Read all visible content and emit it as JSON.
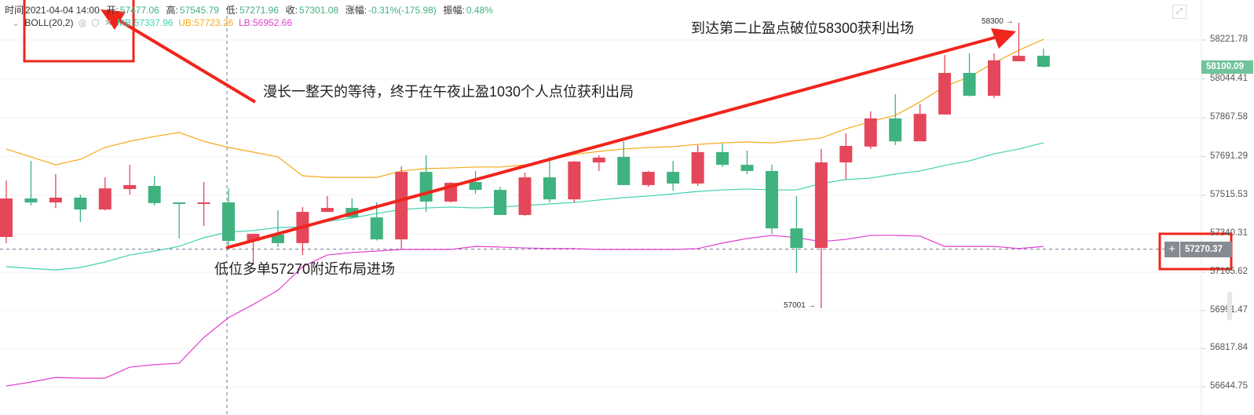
{
  "header": {
    "time_label": "时间",
    "time": "2021-04-04 14:00",
    "open_label": "开:",
    "open": "57477.06",
    "high_label": "高:",
    "high": "57545.79",
    "low_label": "低:",
    "low": "57271.96",
    "close_label": "收:",
    "close": "57301.08",
    "change_label": "涨幅:",
    "change": "-0.31%(-175.98)",
    "amp_label": "振幅:",
    "amp": "0.48%"
  },
  "indicator": {
    "name": "BOLL(20,2)",
    "mb": "MB:57337.96",
    "ub": "UB:57723.26",
    "lb": "LB:56952.66",
    "icons": [
      "chevron-down-icon",
      "eye-icon",
      "settings-icon",
      "close-icon"
    ]
  },
  "annotations": {
    "top": "到达第二止盈点破位58300获利出场",
    "middle": "漫长一整天的等待，终于在午夜止盈1030个人点位获利出局",
    "bottom": "低位多单57270附近布局进场"
  },
  "colors": {
    "up": "#e5475a",
    "down": "#3fb27f",
    "ub": "#f7a91b",
    "mb": "#3fd1b0",
    "lb": "#e23fcf",
    "arrow": "#f0251c"
  },
  "current_price": "58100.09",
  "line_price": "57270.37",
  "line_price_value": 57270.37,
  "high_mark": "58300 →",
  "low_mark": "57001 →",
  "chart_data": {
    "type": "candlestick",
    "ylim": [
      56600,
      58300
    ],
    "y_ticks": [
      "58221.78",
      "58044.41",
      "57867.58",
      "57691.29",
      "57515.53",
      "57340.31",
      "57165.62",
      "56991.47",
      "56817.84",
      "56644.75"
    ],
    "ohlc": [
      [
        57326,
        57583,
        57298,
        57501
      ],
      [
        57501,
        57672,
        57469,
        57483
      ],
      [
        57483,
        57612,
        57458,
        57505
      ],
      [
        57505,
        57519,
        57394,
        57451
      ],
      [
        57451,
        57597,
        57447,
        57547
      ],
      [
        57544,
        57654,
        57519,
        57562
      ],
      [
        57558,
        57604,
        57469,
        57480
      ],
      [
        57483,
        57483,
        57319,
        57476
      ],
      [
        57476,
        57576,
        57376,
        57483
      ],
      [
        57483,
        57547,
        57269,
        57308
      ],
      [
        57308,
        57340,
        57198,
        57340
      ],
      [
        57337,
        57447,
        57280,
        57298
      ],
      [
        57298,
        57462,
        57244,
        57440
      ],
      [
        57440,
        57512,
        57440,
        57458
      ],
      [
        57458,
        57501,
        57412,
        57415
      ],
      [
        57415,
        57483,
        57310,
        57315
      ],
      [
        57315,
        57647,
        57269,
        57622
      ],
      [
        57622,
        57697,
        57440,
        57487
      ],
      [
        57487,
        57576,
        57483,
        57572
      ],
      [
        57576,
        57626,
        57522,
        57540
      ],
      [
        57540,
        57554,
        57426,
        57426
      ],
      [
        57426,
        57619,
        57422,
        57597
      ],
      [
        57597,
        57690,
        57483,
        57497
      ],
      [
        57497,
        57672,
        57483,
        57669
      ],
      [
        57665,
        57697,
        57626,
        57687
      ],
      [
        57690,
        57761,
        57562,
        57562
      ],
      [
        57562,
        57626,
        57554,
        57622
      ],
      [
        57622,
        57672,
        57537,
        57569
      ],
      [
        57569,
        57744,
        57558,
        57712
      ],
      [
        57712,
        57751,
        57644,
        57654
      ],
      [
        57654,
        57719,
        57612,
        57626
      ],
      [
        57626,
        57654,
        57340,
        57365
      ],
      [
        57365,
        57512,
        57162,
        57276
      ],
      [
        57276,
        57726,
        57001,
        57665
      ],
      [
        57665,
        57797,
        57587,
        57740
      ],
      [
        57737,
        57897,
        57726,
        57865
      ],
      [
        57865,
        57975,
        57744,
        57761
      ],
      [
        57761,
        57929,
        57761,
        57886
      ],
      [
        57883,
        58154,
        57883,
        58072
      ],
      [
        58072,
        58161,
        57965,
        57968
      ],
      [
        57968,
        58161,
        57958,
        58129
      ],
      [
        58125,
        58300,
        58125,
        58150
      ],
      [
        58150,
        58182,
        58097,
        58100
      ]
    ],
    "ub": [
      57726,
      57690,
      57654,
      57679,
      57733,
      57761,
      57783,
      57801,
      57761,
      57733,
      57712,
      57690,
      57604,
      57597,
      57597,
      57597,
      57626,
      57637,
      57640,
      57644,
      57644,
      57654,
      57676,
      57701,
      57715,
      57726,
      57733,
      57737,
      57747,
      57754,
      57758,
      57754,
      57765,
      57776,
      57818,
      57851,
      57879,
      57940,
      58011,
      58054,
      58118,
      58175,
      58225
    ],
    "mb": [
      57191,
      57183,
      57176,
      57187,
      57212,
      57244,
      57262,
      57283,
      57323,
      57348,
      57355,
      57369,
      57372,
      57397,
      57412,
      57433,
      57451,
      57458,
      57462,
      57458,
      57462,
      57469,
      57476,
      57483,
      57494,
      57505,
      57512,
      57522,
      57533,
      57540,
      57544,
      57540,
      57540,
      57569,
      57587,
      57594,
      57612,
      57626,
      57651,
      57672,
      57704,
      57726,
      57754
    ],
    "lb": [
      56648,
      56666,
      56687,
      56684,
      56684,
      56734,
      56745,
      56752,
      56869,
      56959,
      57019,
      57083,
      57191,
      57244,
      57255,
      57262,
      57269,
      57269,
      57269,
      57283,
      57280,
      57276,
      57273,
      57273,
      57269,
      57269,
      57269,
      57269,
      57273,
      57298,
      57319,
      57333,
      57323,
      57305,
      57315,
      57333,
      57333,
      57330,
      57283,
      57283,
      57283,
      57273,
      57283
    ]
  }
}
